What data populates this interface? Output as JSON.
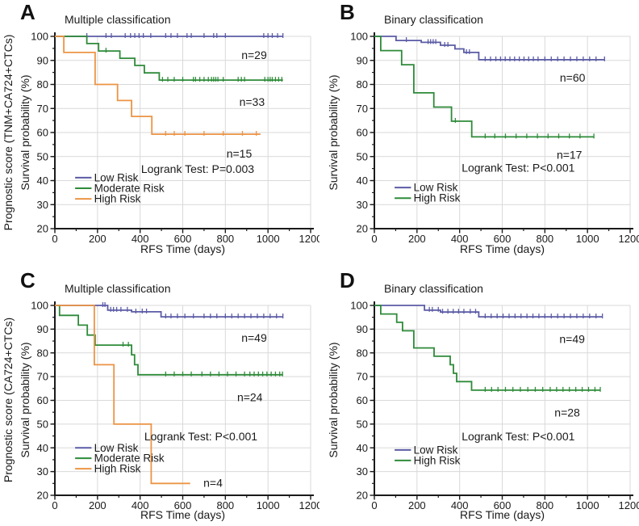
{
  "figure": {
    "background": "#ffffff",
    "colors": {
      "low": "#5b5ba6",
      "moderate": "#2e8b39",
      "high": "#ec9444",
      "grid": "#d9d9d9",
      "axis": "#1a1a1a",
      "text": "#1a1a1a"
    },
    "axes": {
      "xlabel": "RFS Time (days)",
      "xlim": [
        0,
        1200
      ],
      "xticks": [
        0,
        200,
        400,
        600,
        800,
        1000,
        1200
      ],
      "ylim": [
        20,
        100
      ],
      "yticks": [
        20,
        30,
        40,
        50,
        60,
        70,
        80,
        90,
        100
      ],
      "grid": true
    }
  },
  "chart_data": [
    {
      "type": "line",
      "panel": "A",
      "title": "Multiple classification",
      "ylabel_outer": "Prognostic score (TNM+CA724+CTCs)",
      "ylabel_inner": "Survival probability (%)",
      "logrank": {
        "text": "Logrank Test: P=0.003",
        "x": 670,
        "y": 44.5
      },
      "annotations": [
        {
          "text": "n=29",
          "x": 935,
          "y": 92
        },
        {
          "text": "n=33",
          "x": 925,
          "y": 72.5
        },
        {
          "text": "n=15",
          "x": 865,
          "y": 51
        }
      ],
      "legend": {
        "anchor_y": 41.2,
        "entries": [
          {
            "label": "Low Risk",
            "color": "low"
          },
          {
            "label": "Moderate Risk",
            "color": "moderate"
          },
          {
            "label": "High Risk",
            "color": "high"
          }
        ]
      },
      "series": [
        {
          "name": "Low Risk",
          "color": "low",
          "n": 29,
          "points": [
            [
              0,
              100
            ]
          ],
          "end": 1070,
          "censors": [
            150,
            240,
            265,
            330,
            355,
            375,
            395,
            415,
            450,
            520,
            545,
            575,
            620,
            640,
            700,
            745,
            760,
            800,
            980,
            1000,
            1020,
            1045,
            1070
          ]
        },
        {
          "name": "Moderate Risk",
          "color": "moderate",
          "n": 33,
          "points": [
            [
              0,
              100
            ],
            [
              150,
              97
            ],
            [
              205,
              93.9
            ],
            [
              305,
              90.9
            ],
            [
              375,
              87.9
            ],
            [
              420,
              84.8
            ],
            [
              490,
              81.8
            ]
          ],
          "end": 1070,
          "censors": [
            240,
            505,
            530,
            560,
            600,
            650,
            660,
            680,
            700,
            720,
            735,
            745,
            755,
            765,
            790,
            860,
            875,
            890,
            985,
            1000,
            1010,
            1020,
            1035,
            1050,
            1065
          ]
        },
        {
          "name": "High Risk",
          "color": "high",
          "n": 15,
          "points": [
            [
              0,
              100
            ],
            [
              42,
              93.3
            ],
            [
              189,
              80
            ],
            [
              294,
              73.3
            ],
            [
              360,
              66.7
            ],
            [
              455,
              59.3
            ]
          ],
          "end": 965,
          "censors": [
            520,
            560,
            610,
            700,
            790,
            880,
            945
          ]
        }
      ]
    },
    {
      "type": "line",
      "panel": "B",
      "title": "Binary classification",
      "ylabel_inner": "Survival probability (%)",
      "logrank": {
        "text": "Logrank Test: P<0.001",
        "x": 675,
        "y": 45
      },
      "annotations": [
        {
          "text": "n=60",
          "x": 930,
          "y": 82.5
        },
        {
          "text": "n=17",
          "x": 915,
          "y": 50.5
        }
      ],
      "legend": {
        "anchor_y": 37.1,
        "entries": [
          {
            "label": "Low Risk",
            "color": "low"
          },
          {
            "label": "High Risk",
            "color": "moderate"
          }
        ]
      },
      "series": [
        {
          "name": "Low Risk",
          "color": "low",
          "n": 60,
          "points": [
            [
              0,
              100
            ],
            [
              102,
              98.3
            ],
            [
              220,
              97.5
            ],
            [
              310,
              96.3
            ],
            [
              378,
              94.8
            ],
            [
              420,
              93.3
            ],
            [
              490,
              90.3
            ]
          ],
          "end": 1080,
          "censors": [
            150,
            252,
            264,
            276,
            288,
            330,
            345,
            432,
            446,
            520,
            545,
            570,
            592,
            614,
            636,
            658,
            680,
            702,
            724,
            746,
            768,
            800,
            830,
            860,
            890,
            920,
            950,
            980,
            1010,
            1040,
            1080
          ]
        },
        {
          "name": "High Risk",
          "color": "moderate",
          "n": 17,
          "points": [
            [
              0,
              100
            ],
            [
              30,
              94.1
            ],
            [
              128,
              88.2
            ],
            [
              185,
              76.5
            ],
            [
              279,
              70.6
            ],
            [
              362,
              64.7
            ],
            [
              457,
              58.2
            ]
          ],
          "end": 1030,
          "censors": [
            380,
            520,
            565,
            615,
            665,
            715,
            765,
            815,
            865,
            915,
            965,
            1030
          ]
        }
      ]
    },
    {
      "type": "line",
      "panel": "C",
      "title": "Multiple classification",
      "ylabel_outer": "Prognostic score (CA724+CTCs)",
      "ylabel_inner": "Survival probability (%)",
      "logrank": {
        "text": "Logrank Test: P<0.001",
        "x": 685,
        "y": 44.5
      },
      "annotations": [
        {
          "text": "n=49",
          "x": 935,
          "y": 86
        },
        {
          "text": "n=24",
          "x": 915,
          "y": 61
        },
        {
          "text": "n=4",
          "x": 742,
          "y": 25
        }
      ],
      "legend": {
        "anchor_y": 40.0,
        "entries": [
          {
            "label": "Low Risk",
            "color": "low"
          },
          {
            "label": "Moderate Risk",
            "color": "moderate"
          },
          {
            "label": "High Risk",
            "color": "high"
          }
        ]
      },
      "series": [
        {
          "name": "Low Risk",
          "color": "low",
          "n": 49,
          "points": [
            [
              0,
              100
            ],
            [
              248,
              98
            ],
            [
              360,
              97.3
            ],
            [
              498,
              95.2
            ]
          ],
          "end": 1070,
          "censors": [
            225,
            235,
            262,
            275,
            290,
            310,
            340,
            380,
            410,
            430,
            520,
            545,
            575,
            610,
            650,
            700,
            730,
            760,
            800,
            830,
            860,
            890,
            920,
            950,
            980,
            1010,
            1040,
            1070
          ]
        },
        {
          "name": "Moderate Risk",
          "color": "moderate",
          "n": 24,
          "points": [
            [
              0,
              100
            ],
            [
              22,
              95.8
            ],
            [
              110,
              91.7
            ],
            [
              152,
              87.5
            ],
            [
              189,
              83.3
            ],
            [
              360,
              79.2
            ],
            [
              374,
              75
            ],
            [
              390,
              70.8
            ]
          ],
          "end": 1070,
          "censors": [
            320,
            345,
            520,
            560,
            600,
            640,
            690,
            730,
            770,
            810,
            850,
            890,
            915,
            935,
            955,
            975,
            995,
            1015,
            1035,
            1055,
            1068
          ]
        },
        {
          "name": "High Risk",
          "color": "high",
          "n": 4,
          "points": [
            [
              0,
              100
            ],
            [
              185,
              75
            ],
            [
              277,
              50
            ],
            [
              452,
              25
            ]
          ],
          "end": 635,
          "censors": []
        }
      ]
    },
    {
      "type": "line",
      "panel": "D",
      "title": "Binary classification",
      "ylabel_inner": "Survival probability (%)",
      "logrank": {
        "text": "Logrank Test: P<0.001",
        "x": 675,
        "y": 44.5
      },
      "annotations": [
        {
          "text": "n=49",
          "x": 928,
          "y": 85.5
        },
        {
          "text": "n=28",
          "x": 905,
          "y": 54.5
        }
      ],
      "legend": {
        "anchor_y": 39.1,
        "entries": [
          {
            "label": "Low Risk",
            "color": "low"
          },
          {
            "label": "High Risk",
            "color": "moderate"
          }
        ]
      },
      "series": [
        {
          "name": "Low Risk",
          "color": "low",
          "n": 49,
          "points": [
            [
              0,
              100
            ],
            [
              235,
              98
            ],
            [
              310,
              97.2
            ],
            [
              490,
              95.2
            ]
          ],
          "end": 1070,
          "censors": [
            258,
            272,
            300,
            320,
            345,
            370,
            395,
            420,
            450,
            475,
            520,
            548,
            576,
            604,
            632,
            660,
            688,
            716,
            744,
            772,
            800,
            830,
            860,
            890,
            920,
            950,
            980,
            1010,
            1040,
            1070
          ]
        },
        {
          "name": "High Risk",
          "color": "moderate",
          "n": 28,
          "points": [
            [
              0,
              100
            ],
            [
              30,
              96.4
            ],
            [
              105,
              92.9
            ],
            [
              132,
              89.3
            ],
            [
              185,
              82.1
            ],
            [
              280,
              78.6
            ],
            [
              356,
              75
            ],
            [
              371,
              71.4
            ],
            [
              386,
              67.9
            ],
            [
              456,
              64.3
            ]
          ],
          "end": 1060,
          "censors": [
            520,
            550,
            580,
            615,
            650,
            685,
            720,
            755,
            790,
            825,
            855,
            885,
            915,
            945,
            975,
            1005,
            1035,
            1060
          ]
        }
      ]
    }
  ]
}
